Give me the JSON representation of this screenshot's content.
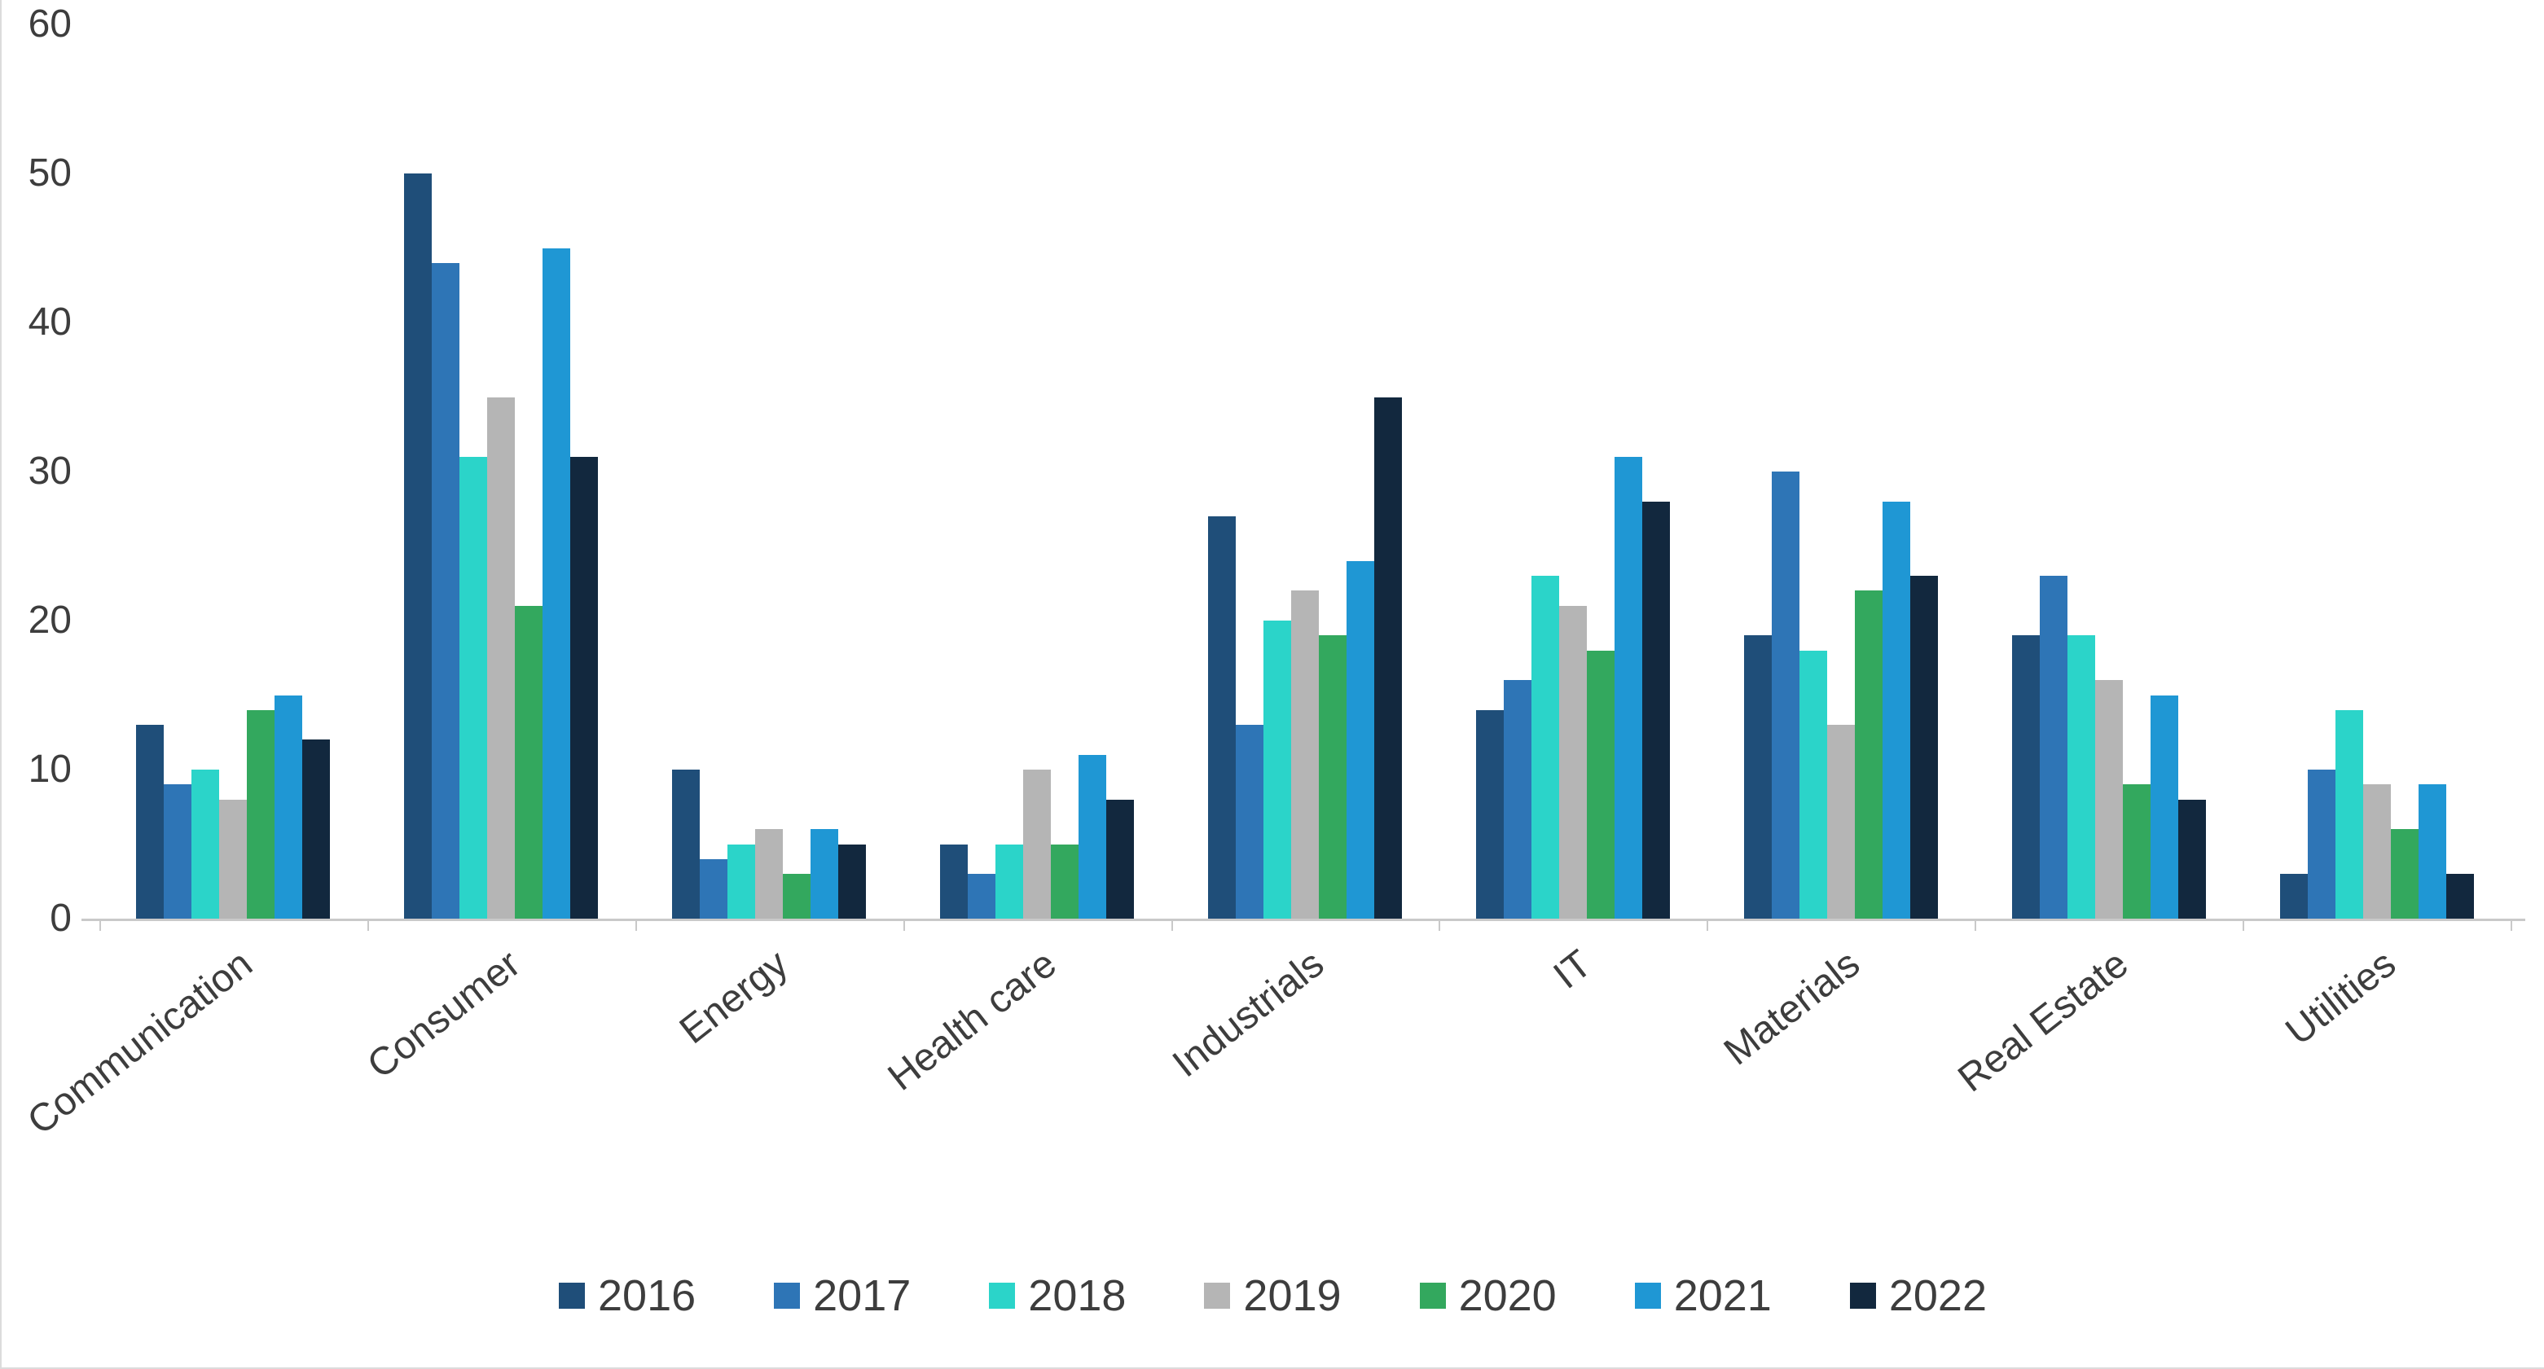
{
  "chart_data": {
    "type": "bar",
    "categories": [
      "Communication",
      "Consumer",
      "Energy",
      "Health care",
      "Industrials",
      "IT",
      "Materials",
      "Real Estate",
      "Utilities"
    ],
    "series": [
      {
        "name": "2016",
        "color": "#1F4E79",
        "values": [
          13,
          50,
          10,
          5,
          27,
          14,
          19,
          19,
          3
        ]
      },
      {
        "name": "2017",
        "color": "#2E75B6",
        "values": [
          9,
          44,
          4,
          3,
          13,
          16,
          30,
          23,
          10
        ]
      },
      {
        "name": "2018",
        "color": "#2BD4C9",
        "values": [
          10,
          31,
          5,
          5,
          20,
          23,
          18,
          19,
          14
        ]
      },
      {
        "name": "2019",
        "color": "#B5B5B5",
        "values": [
          8,
          35,
          6,
          10,
          22,
          21,
          13,
          16,
          9
        ]
      },
      {
        "name": "2020",
        "color": "#33A85E",
        "values": [
          14,
          21,
          3,
          5,
          19,
          18,
          22,
          9,
          6
        ]
      },
      {
        "name": "2021",
        "color": "#1F97D4",
        "values": [
          15,
          45,
          6,
          11,
          24,
          31,
          28,
          15,
          9
        ]
      },
      {
        "name": "2022",
        "color": "#12283E",
        "values": [
          12,
          31,
          5,
          8,
          35,
          28,
          23,
          8,
          3
        ]
      }
    ],
    "ylim": [
      0,
      60
    ],
    "yticks": [
      0,
      10,
      20,
      30,
      40,
      50,
      60
    ],
    "grid": false,
    "legend_position": "bottom",
    "axis_label_color": "#3d3d3d",
    "axis_line_color": "#c9c9c9"
  }
}
